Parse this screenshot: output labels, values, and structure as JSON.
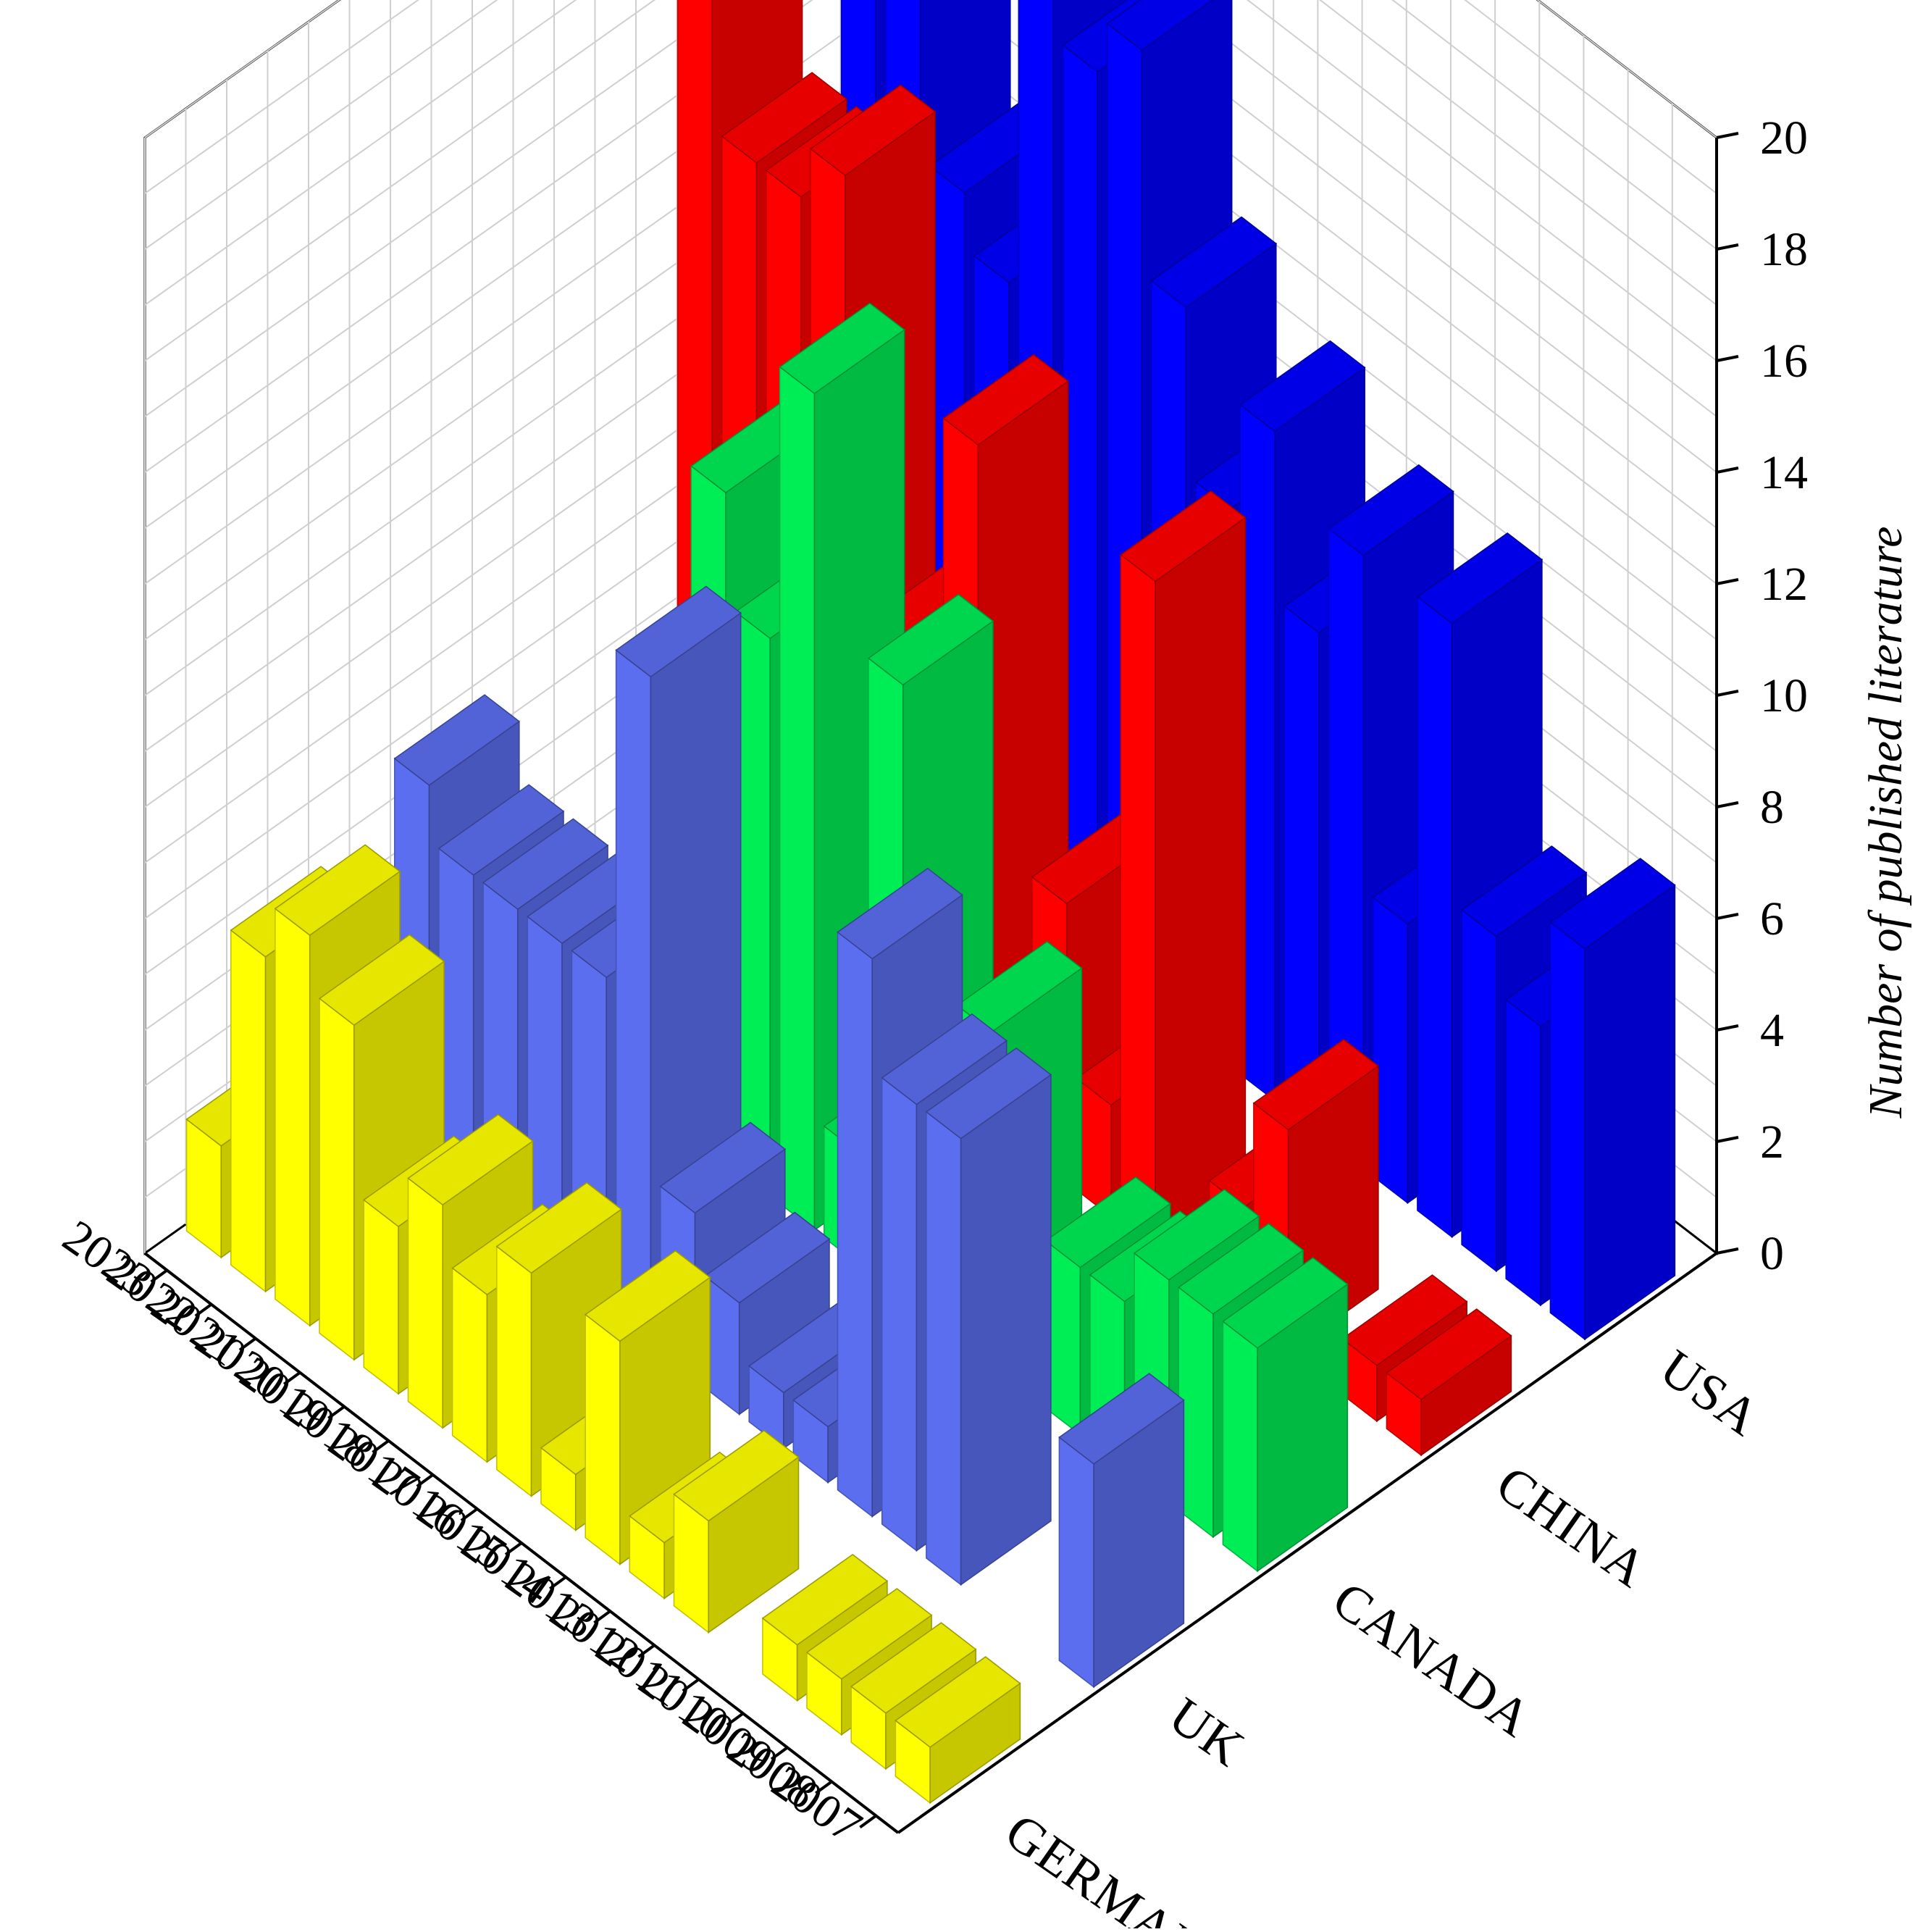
{
  "chart_data": {
    "type": "bar3d",
    "ylabel": "Number of published literature",
    "zlim": [
      0,
      20
    ],
    "z_ticks": [
      "0",
      "2",
      "4",
      "6",
      "8",
      "10",
      "12",
      "14",
      "16",
      "18",
      "20"
    ],
    "years": [
      "2007",
      "2008",
      "2009",
      "2010",
      "2011",
      "2012",
      "2013",
      "2014",
      "2015",
      "2016",
      "2017",
      "2018",
      "2019",
      "2020",
      "2021",
      "2022",
      "2023"
    ],
    "grid": true,
    "series": [
      {
        "name": "GERMANY",
        "color": "#ffff00",
        "values": [
          1,
          1,
          1,
          1,
          0,
          2,
          1,
          4,
          1,
          4,
          3,
          4,
          3,
          6,
          7,
          6,
          2
        ]
      },
      {
        "name": "UK",
        "color": "#5b6ef0",
        "values": [
          4,
          0,
          0,
          8,
          8,
          10,
          1,
          1,
          2,
          3,
          12,
          6,
          6,
          6,
          6,
          7,
          1
        ]
      },
      {
        "name": "CANADA",
        "color": "#00ee55",
        "values": [
          4,
          4,
          4,
          3,
          3,
          1,
          6,
          0,
          11,
          2,
          15,
          10,
          12,
          1,
          1,
          0,
          0
        ]
      },
      {
        "name": "CHINA",
        "color": "#ff0000",
        "values": [
          1,
          1,
          0,
          4,
          2,
          0,
          12,
          2,
          5,
          0,
          12,
          7,
          7,
          15,
          14,
          14,
          20
        ]
      },
      {
        "name": "USA",
        "color": "#0000ff",
        "values": [
          7,
          5,
          6,
          11,
          5,
          11,
          9,
          12,
          10,
          13,
          17,
          16,
          17,
          11,
          12,
          16,
          23
        ]
      }
    ]
  }
}
